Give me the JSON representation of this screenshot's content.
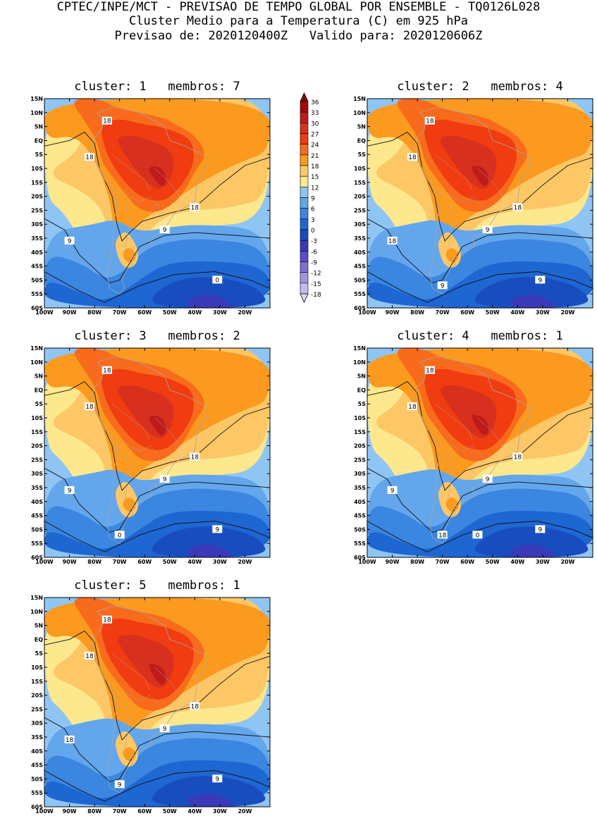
{
  "header": {
    "line1": "CPTEC/INPE/MCT - PREVISAO DE TEMPO GLOBAL POR ENSEMBLE - TQ0126L028",
    "line2": "Cluster Medio para a Temperatura (C) em 925 hPa",
    "line3": "Previsao de: 2020120400Z   Valido para: 2020120606Z"
  },
  "panels": [
    {
      "title": "cluster: 1   membros: 7",
      "contour_labels": [
        "18",
        "18",
        "18",
        "9",
        "9",
        "0"
      ]
    },
    {
      "title": "cluster: 2   membros: 4",
      "contour_labels": [
        "18",
        "18",
        "18",
        "18",
        "9",
        "9",
        "9"
      ]
    },
    {
      "title": "cluster: 3   membros: 2",
      "contour_labels": [
        "18",
        "18",
        "18",
        "9",
        "9",
        "9",
        "0"
      ]
    },
    {
      "title": "cluster: 4   membros: 1",
      "contour_labels": [
        "18",
        "18",
        "18",
        "9",
        "9",
        "9",
        "18",
        "0"
      ]
    },
    {
      "title": "cluster: 5   membros: 1",
      "contour_labels": [
        "18",
        "18",
        "18",
        "18",
        "9",
        "9",
        "9"
      ]
    }
  ],
  "lat_labels": [
    "15N",
    "10N",
    "5N",
    "EQ",
    "5S",
    "10S",
    "15S",
    "20S",
    "25S",
    "30S",
    "35S",
    "40S",
    "45S",
    "50S",
    "55S",
    "60S"
  ],
  "lon_labels": [
    "100W",
    "90W",
    "80W",
    "70W",
    "60W",
    "50W",
    "40W",
    "30W",
    "20W"
  ],
  "colorbar": {
    "labels": [
      "36",
      "33",
      "30",
      "27",
      "24",
      "21",
      "18",
      "15",
      "12",
      "9",
      "6",
      "3",
      "0",
      "-3",
      "-6",
      "-9",
      "-12",
      "-15",
      "-18"
    ],
    "colors": [
      "#a50a0a",
      "#c01b1b",
      "#d7301f",
      "#f03c10",
      "#f86b1c",
      "#fb9a1e",
      "#fdc766",
      "#fde88e",
      "#8fc5f4",
      "#63a6ec",
      "#3a86e0",
      "#1e66d2",
      "#184dc0",
      "#3a3ab8",
      "#5a4ec8",
      "#7e6fd6",
      "#a493e2",
      "#c8b8ee"
    ],
    "top_arrow_color": "#8a0606",
    "bottom_arrow_color": "#e0d6f6"
  },
  "style": {
    "line_color": "#111111",
    "coast_color": "#a6a6a6"
  }
}
